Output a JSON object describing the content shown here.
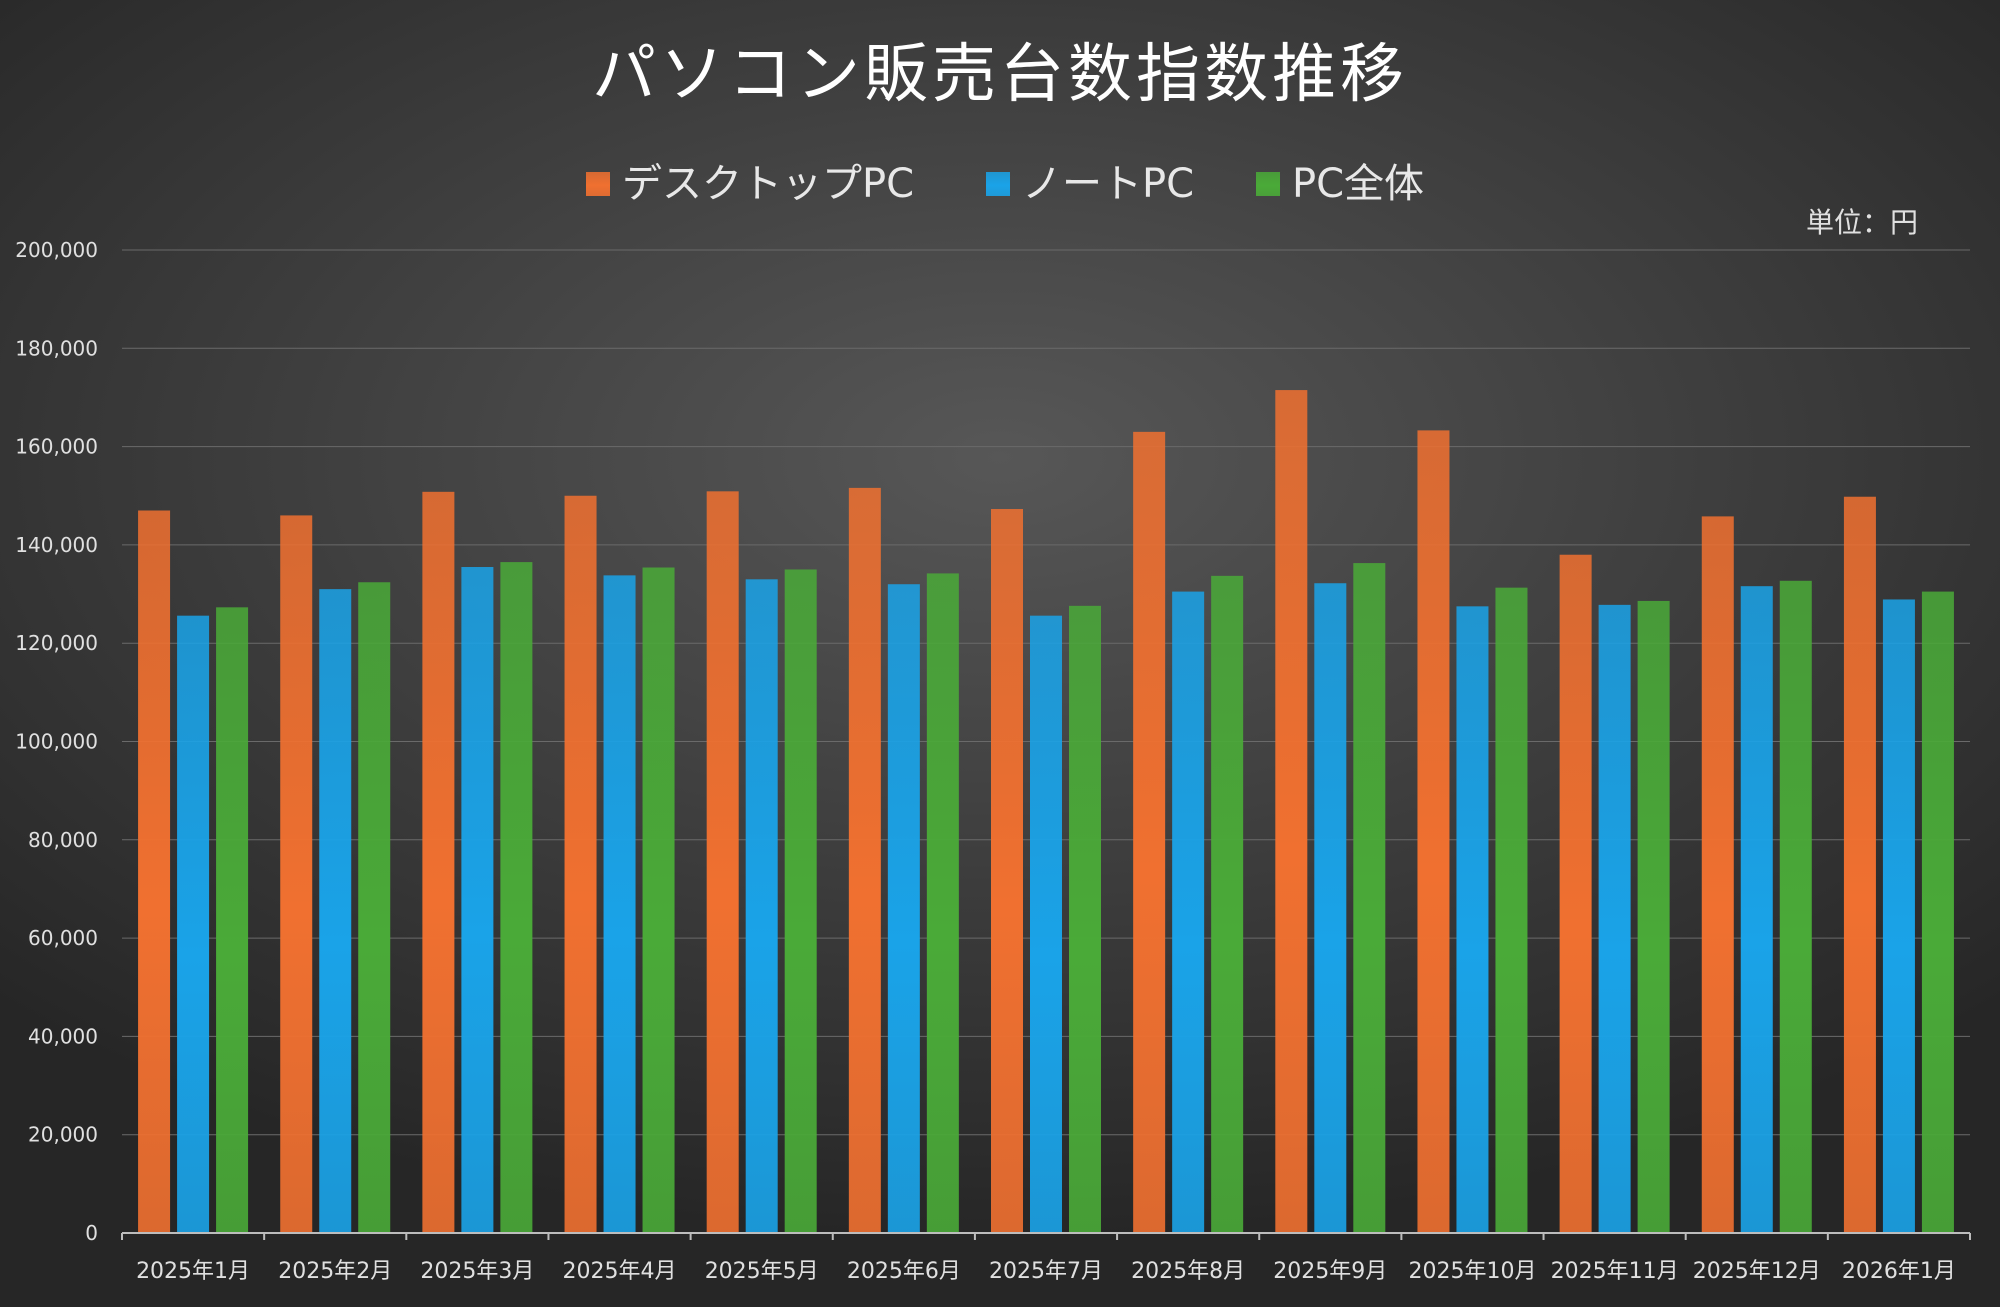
{
  "chart_data": {
    "type": "bar",
    "title": "パソコン販売台数指数推移",
    "unit_label": "単位：円",
    "categories": [
      "2025年1月",
      "2025年2月",
      "2025年3月",
      "2025年4月",
      "2025年5月",
      "2025年6月",
      "2025年7月",
      "2025年8月",
      "2025年9月",
      "2025年10月",
      "2025年11月",
      "2025年12月",
      "2026年1月"
    ],
    "series": [
      {
        "name": "デスクトップPC",
        "color": "#f07030",
        "values": [
          147000,
          146000,
          150800,
          150000,
          150900,
          151600,
          147300,
          163000,
          171500,
          163300,
          138000,
          145800,
          149800
        ]
      },
      {
        "name": "ノートPC",
        "color": "#1aa3e8",
        "values": [
          125600,
          131000,
          135500,
          133800,
          133000,
          132000,
          125600,
          130500,
          132200,
          127500,
          127800,
          131600,
          128900
        ]
      },
      {
        "name": "PC全体",
        "color": "#4aaa38",
        "values": [
          127300,
          132400,
          136500,
          135400,
          135000,
          134200,
          127600,
          133700,
          136300,
          131300,
          128600,
          132700,
          130500
        ]
      }
    ],
    "ylim": [
      0,
      200000
    ],
    "yticks": [
      "0",
      "20,000",
      "40,000",
      "60,000",
      "80,000",
      "100,000",
      "120,000",
      "140,000",
      "160,000",
      "180,000",
      "200,000"
    ],
    "ytick_step": 20000,
    "grid": true,
    "legend_position": "top-center"
  }
}
